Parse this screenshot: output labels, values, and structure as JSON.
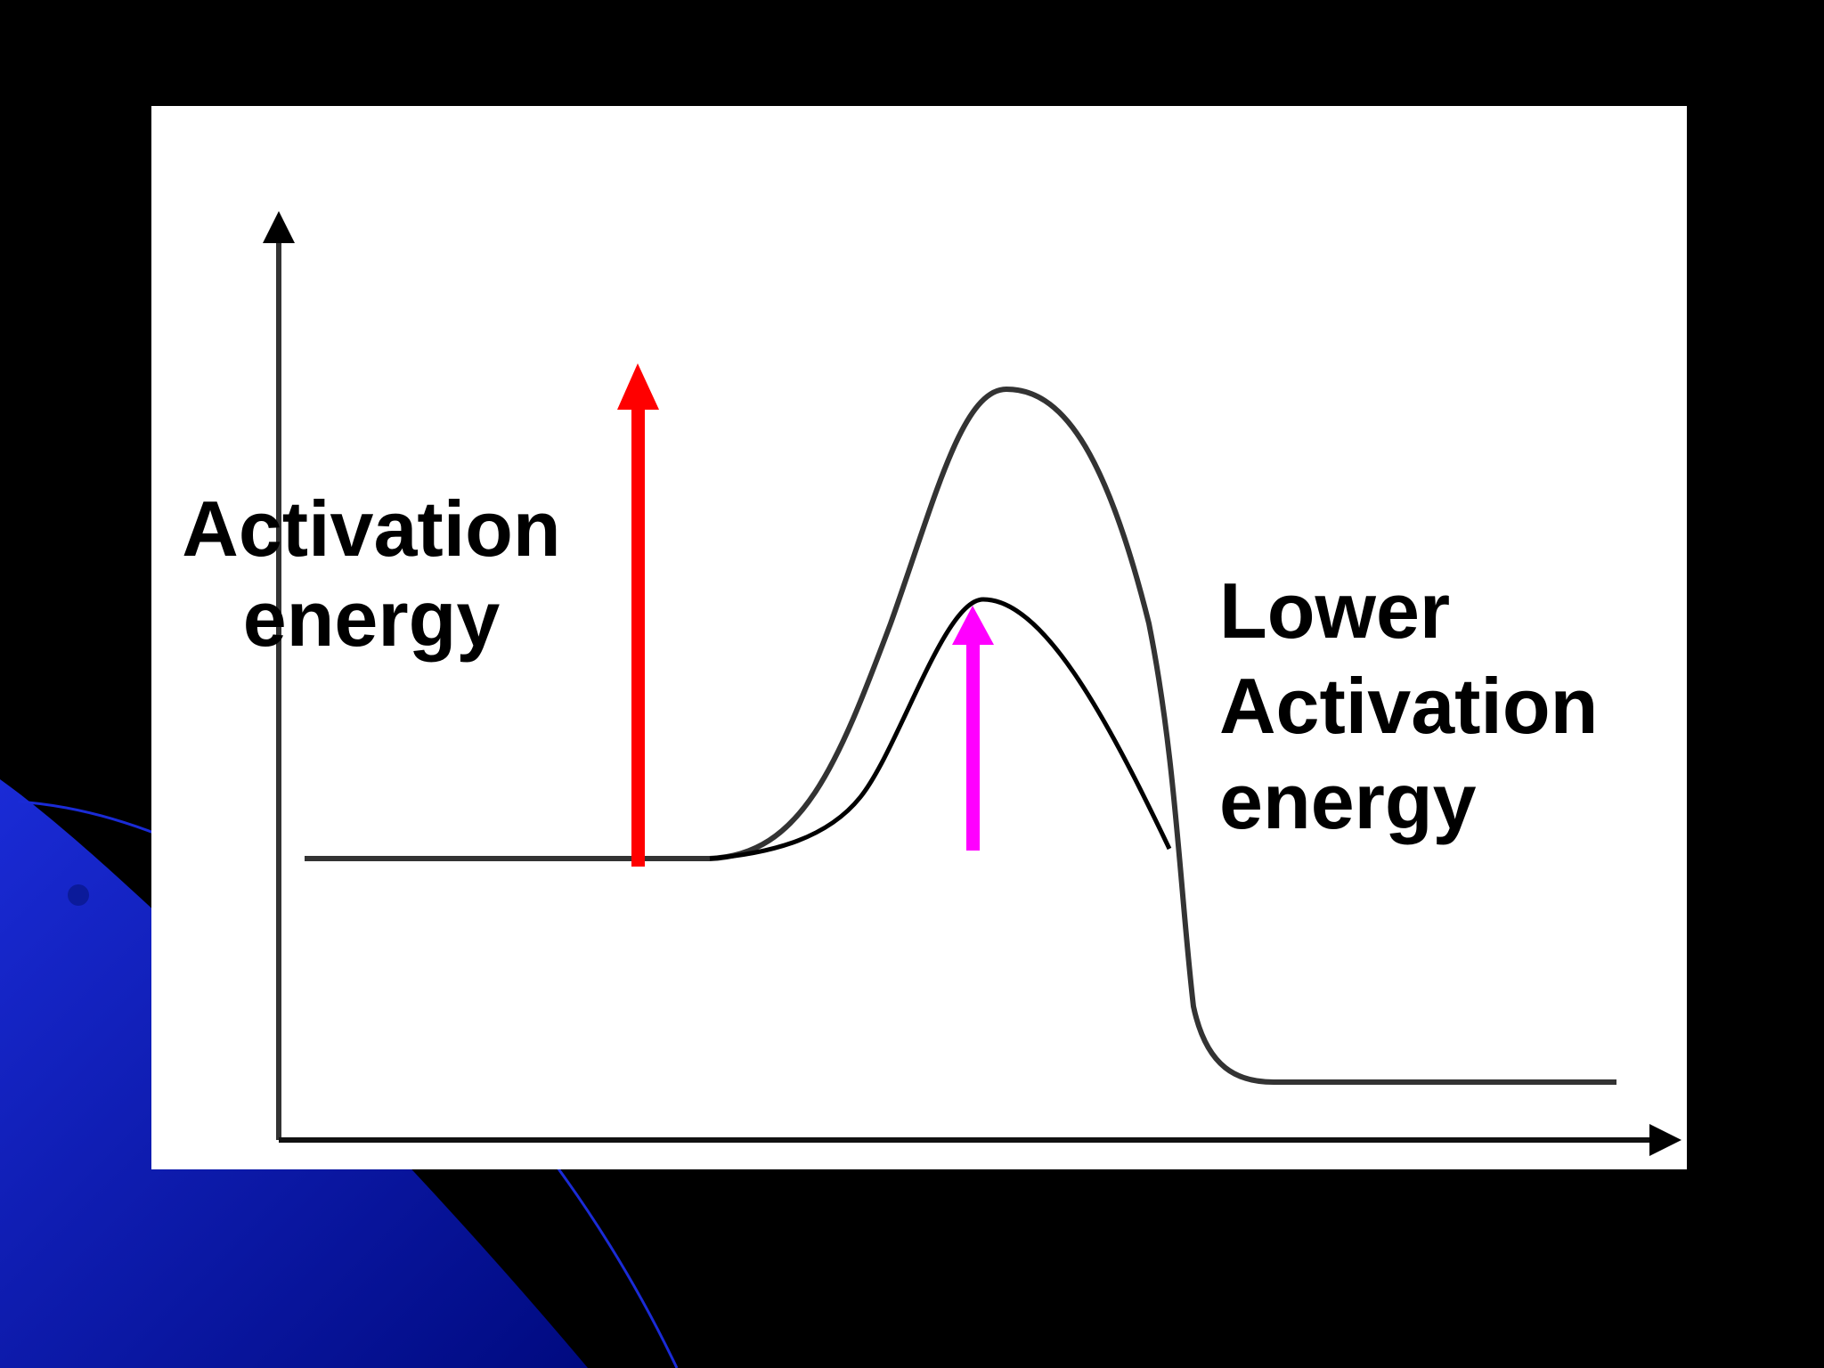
{
  "labels": [
    {
      "lines": [
        "Activation",
        "energy"
      ]
    },
    {
      "lines": [
        "Lower",
        "Activation",
        "energy"
      ]
    }
  ]
}
